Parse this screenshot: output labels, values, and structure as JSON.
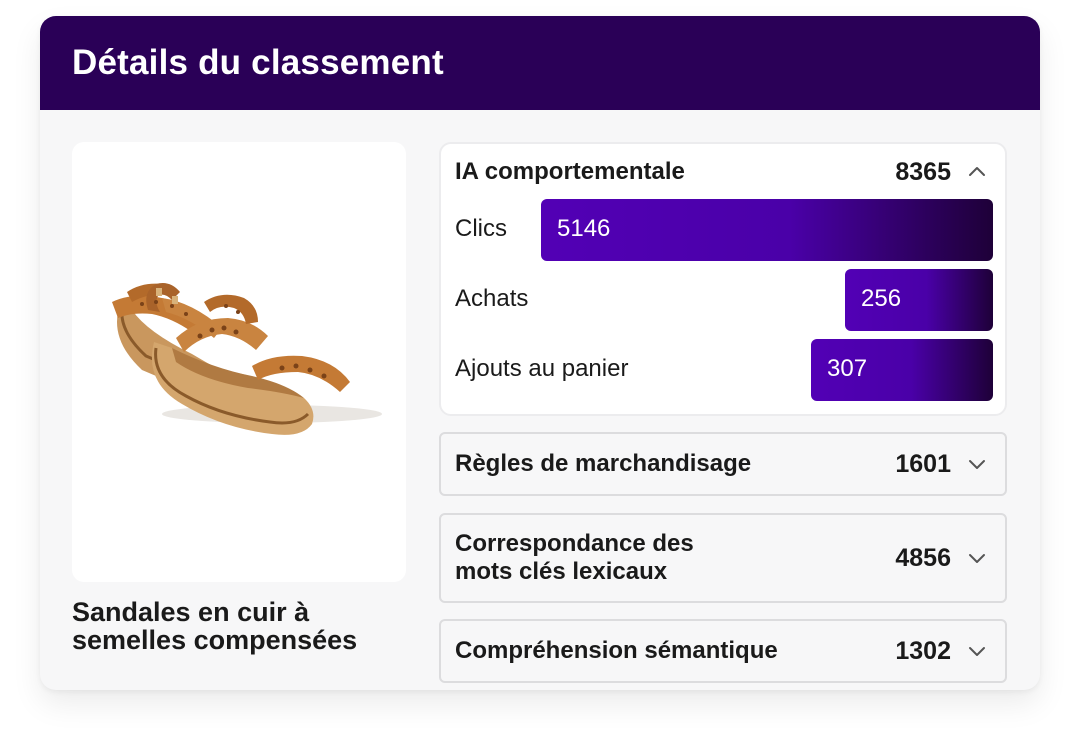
{
  "header": {
    "title": "Détails du classement"
  },
  "product": {
    "name": "Sandales en cuir à semelles compensées"
  },
  "panels": [
    {
      "title": "IA comportementale",
      "score": "8365",
      "expanded": true,
      "metrics": [
        {
          "label": "Clics",
          "value": "5146",
          "fill": 1.0
        },
        {
          "label": "Achats",
          "value": "256",
          "fill": 0.33
        },
        {
          "label": "Ajouts au panier",
          "value": "307",
          "fill": 0.4
        }
      ]
    },
    {
      "title": "Règles de marchandisage",
      "score": "1601",
      "expanded": false
    },
    {
      "title": "Correspondance des mots clés lexicaux",
      "score": "4856",
      "expanded": false
    },
    {
      "title": "Compréhension sémantique",
      "score": "1302",
      "expanded": false
    }
  ],
  "colors": {
    "header_bg": "#2a0057",
    "bar_start": "#5200b5",
    "bar_end": "#1e0038"
  }
}
